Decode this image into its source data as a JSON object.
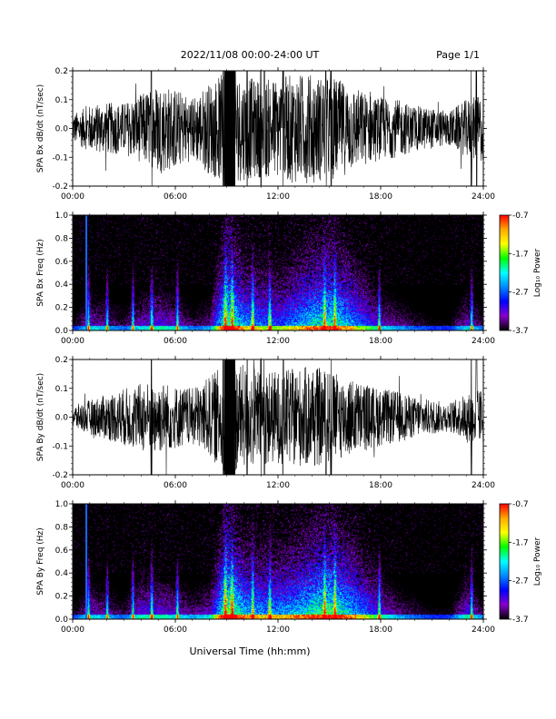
{
  "header": {
    "date_range": "2022/11/08  00:00-24:00 UT",
    "page": "Page 1/1"
  },
  "footer": {
    "xlabel": "Universal Time (hh:mm)"
  },
  "colorbar": {
    "label": "Log₁₀ Power",
    "ticks": [
      "-0.7",
      "-1.7",
      "-2.7",
      "-3.7"
    ],
    "colors": [
      "#ff0000",
      "#ffaa00",
      "#ffff00",
      "#00ff00",
      "#00ffff",
      "#0088ff",
      "#0000ff",
      "#8800cc",
      "#000000"
    ]
  },
  "chart_data": [
    {
      "type": "line",
      "ylabel": "SPA Bx dB/dt (nT/sec)",
      "ylim": [
        -0.2,
        0.2
      ],
      "yticks": [
        "0.2",
        "0.1",
        "0.0",
        "-0.1",
        "-0.2"
      ],
      "xlim": [
        "00:00",
        "24:00"
      ],
      "xticks": [
        "00:00",
        "06:00",
        "12:00",
        "18:00",
        "24:00"
      ],
      "color": "#000000",
      "envelope": {
        "hours": [
          0,
          1,
          2,
          3,
          4,
          5,
          6,
          7,
          8,
          9,
          10,
          11,
          12,
          13,
          14,
          15,
          16,
          17,
          18,
          19,
          20,
          21,
          22,
          23,
          24
        ],
        "amplitude": [
          0.05,
          0.08,
          0.09,
          0.09,
          0.12,
          0.16,
          0.14,
          0.11,
          0.16,
          0.2,
          0.18,
          0.17,
          0.18,
          0.19,
          0.19,
          0.18,
          0.16,
          0.13,
          0.11,
          0.1,
          0.08,
          0.07,
          0.06,
          0.1,
          0.12
        ]
      }
    },
    {
      "type": "heatmap",
      "ylabel": "SPA Bx Freq (Hz)",
      "ylim": [
        0.0,
        1.0
      ],
      "yticks": [
        "1.0",
        "0.8",
        "0.6",
        "0.4",
        "0.2",
        "0.0"
      ],
      "xlim": [
        "00:00",
        "24:00"
      ],
      "xticks": [
        "00:00",
        "06:00",
        "12:00",
        "18:00",
        "24:00"
      ],
      "zlim": [
        -3.7,
        -0.7
      ],
      "activity": {
        "hours": [
          0,
          1,
          2,
          3,
          4,
          5,
          6,
          7,
          8,
          9,
          10,
          11,
          12,
          13,
          14,
          15,
          16,
          17,
          18,
          19,
          20,
          21,
          22,
          23,
          24
        ],
        "level": [
          0.3,
          0.45,
          0.4,
          0.35,
          0.45,
          0.5,
          0.45,
          0.35,
          0.4,
          0.95,
          0.7,
          0.65,
          0.6,
          0.7,
          0.8,
          0.85,
          0.75,
          0.6,
          0.45,
          0.4,
          0.35,
          0.3,
          0.3,
          0.45,
          0.35
        ]
      }
    },
    {
      "type": "line",
      "ylabel": "SPA By dB/dt (nT/sec)",
      "ylim": [
        -0.2,
        0.2
      ],
      "yticks": [
        "0.2",
        "0.1",
        "0.0",
        "-0.1",
        "-0.2"
      ],
      "xlim": [
        "00:00",
        "24:00"
      ],
      "xticks": [
        "00:00",
        "06:00",
        "12:00",
        "18:00",
        "24:00"
      ],
      "color": "#000000",
      "envelope": {
        "hours": [
          0,
          1,
          2,
          3,
          4,
          5,
          6,
          7,
          8,
          9,
          10,
          11,
          12,
          13,
          14,
          15,
          16,
          17,
          18,
          19,
          20,
          21,
          22,
          23,
          24
        ],
        "amplitude": [
          0.04,
          0.06,
          0.08,
          0.1,
          0.12,
          0.13,
          0.11,
          0.1,
          0.14,
          0.2,
          0.18,
          0.17,
          0.16,
          0.17,
          0.18,
          0.16,
          0.14,
          0.12,
          0.1,
          0.09,
          0.07,
          0.06,
          0.05,
          0.08,
          0.1
        ]
      }
    },
    {
      "type": "heatmap",
      "ylabel": "SPA By Freq (Hz)",
      "ylim": [
        0.0,
        1.0
      ],
      "yticks": [
        "1.0",
        "0.8",
        "0.6",
        "0.4",
        "0.2",
        "0.0"
      ],
      "xlim": [
        "00:00",
        "24:00"
      ],
      "xticks": [
        "00:00",
        "06:00",
        "12:00",
        "18:00",
        "24:00"
      ],
      "zlim": [
        -3.7,
        -0.7
      ],
      "activity": {
        "hours": [
          0,
          1,
          2,
          3,
          4,
          5,
          6,
          7,
          8,
          9,
          10,
          11,
          12,
          13,
          14,
          15,
          16,
          17,
          18,
          19,
          20,
          21,
          22,
          23,
          24
        ],
        "level": [
          0.3,
          0.45,
          0.4,
          0.35,
          0.5,
          0.5,
          0.45,
          0.4,
          0.45,
          1.0,
          0.75,
          0.7,
          0.7,
          0.75,
          0.85,
          0.9,
          0.8,
          0.65,
          0.5,
          0.4,
          0.35,
          0.3,
          0.3,
          0.5,
          0.35
        ]
      }
    }
  ]
}
